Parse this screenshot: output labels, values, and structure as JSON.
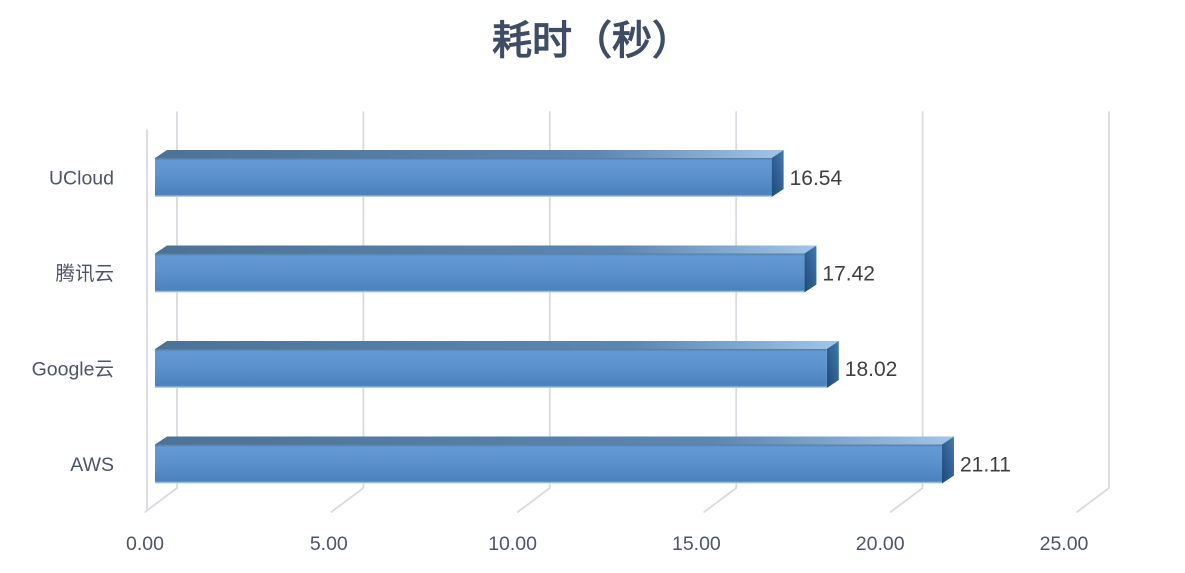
{
  "chart_data": {
    "type": "bar",
    "orientation": "horizontal",
    "style": "3d",
    "title": "耗时（秒）",
    "categories": [
      "UCloud",
      "腾讯云",
      "Google云",
      "AWS"
    ],
    "values": [
      16.54,
      17.42,
      18.02,
      21.11
    ],
    "data_labels": [
      "16.54",
      "17.42",
      "18.02",
      "21.11"
    ],
    "x_axis": {
      "min": 0,
      "max": 25,
      "step": 5,
      "tick_labels": [
        "0.00",
        "5.00",
        "10.00",
        "15.00",
        "20.00",
        "25.00"
      ]
    },
    "xlabel": "",
    "ylabel": "",
    "grid": true,
    "legend": "none"
  },
  "colors": {
    "background": "#ffffff",
    "title_text": "#3f4c63",
    "axis_text": "#4c5666",
    "data_label_text": "#404040",
    "gridline": "#d9dbe1",
    "bar_front_top_edge": "#567c9f",
    "bar_front_light": "#649ad3",
    "bar_front_mid": "#5a91cc",
    "bar_front_dark": "#4b83bf",
    "bar_front_bottom_edge": "#cfe2f2",
    "bar_top_near": "#4d7295",
    "bar_top_mid": "#5d86b1",
    "bar_top_far": "#a2c5e8",
    "bar_side_light": "#4579ae",
    "bar_side_dark": "#1c4979"
  }
}
